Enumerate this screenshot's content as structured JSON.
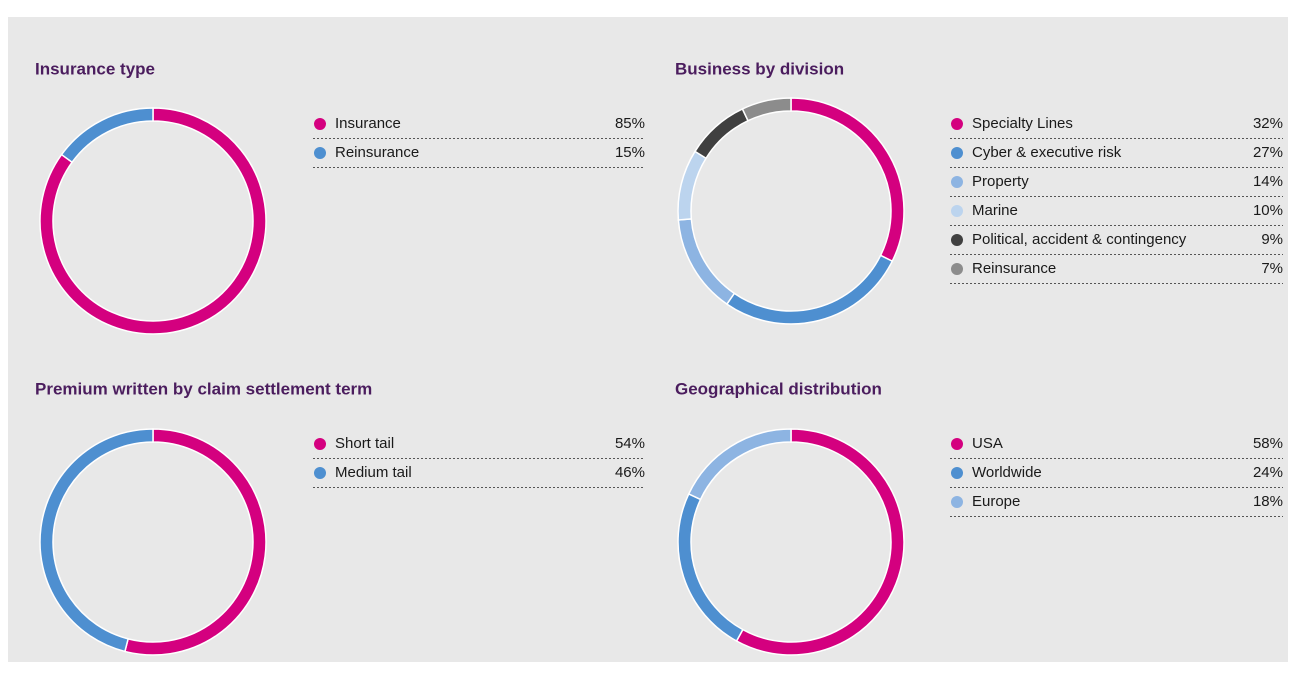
{
  "chart_data": [
    {
      "type": "pie",
      "title": "Insurance type",
      "categories": [
        "Insurance",
        "Reinsurance"
      ],
      "values": [
        85,
        15
      ],
      "value_labels": [
        "85%",
        "15%"
      ],
      "colors": [
        "#d4007f",
        "#4e8fd0"
      ]
    },
    {
      "type": "pie",
      "title": "Business by division",
      "categories": [
        "Specialty Lines",
        "Cyber & executive risk",
        "Property",
        "Marine",
        "Political, accident & contingency",
        "Reinsurance"
      ],
      "values": [
        32,
        27,
        14,
        10,
        9,
        7
      ],
      "value_labels": [
        "32%",
        "27%",
        "14%",
        "10%",
        "9%",
        "7%"
      ],
      "colors": [
        "#d4007f",
        "#4e8fd0",
        "#8db4e2",
        "#bcd4ee",
        "#404040",
        "#8c8c8c"
      ]
    },
    {
      "type": "pie",
      "title": "Premium written by claim settlement term",
      "categories": [
        "Short tail",
        "Medium tail"
      ],
      "values": [
        54,
        46
      ],
      "value_labels": [
        "54%",
        "46%"
      ],
      "colors": [
        "#d4007f",
        "#4e8fd0"
      ]
    },
    {
      "type": "pie",
      "title": "Geographical distribution",
      "categories": [
        "USA",
        "Worldwide",
        "Europe"
      ],
      "values": [
        58,
        24,
        18
      ],
      "value_labels": [
        "58%",
        "24%",
        "18%"
      ],
      "colors": [
        "#d4007f",
        "#4e8fd0",
        "#8db4e2"
      ]
    }
  ]
}
